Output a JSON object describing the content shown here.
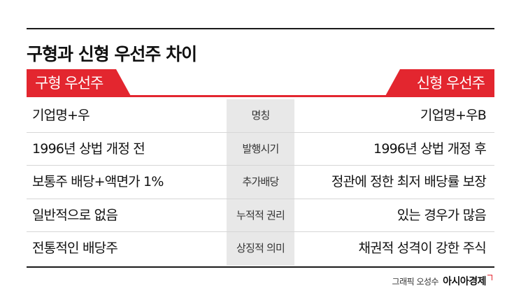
{
  "title": "구형과 신형 우선주 차이",
  "tabs": {
    "left": "구형 우선주",
    "right": "신형 우선주"
  },
  "rows": [
    {
      "old": "기업명+우",
      "category": "명칭",
      "new": "기업명+우B"
    },
    {
      "old": "1996년 상법 개정 전",
      "category": "발행시기",
      "new": "1996년 상법 개정 후"
    },
    {
      "old": "보통주 배당+액면가 1%",
      "category": "추가배당",
      "new": "정관에 정한 최저 배당률 보장"
    },
    {
      "old": "일반적으로 없음",
      "category": "누적적 권리",
      "new": "있는 경우가 많음"
    },
    {
      "old": "전통적인 배당주",
      "category": "상징적 의미",
      "new": "채권적 성격이 강한 주식"
    }
  ],
  "credit": {
    "text": "그래픽 오성수",
    "brand": "아시아경제"
  },
  "colors": {
    "accent": "#e3262f",
    "center_column": "#e8e8e8"
  }
}
